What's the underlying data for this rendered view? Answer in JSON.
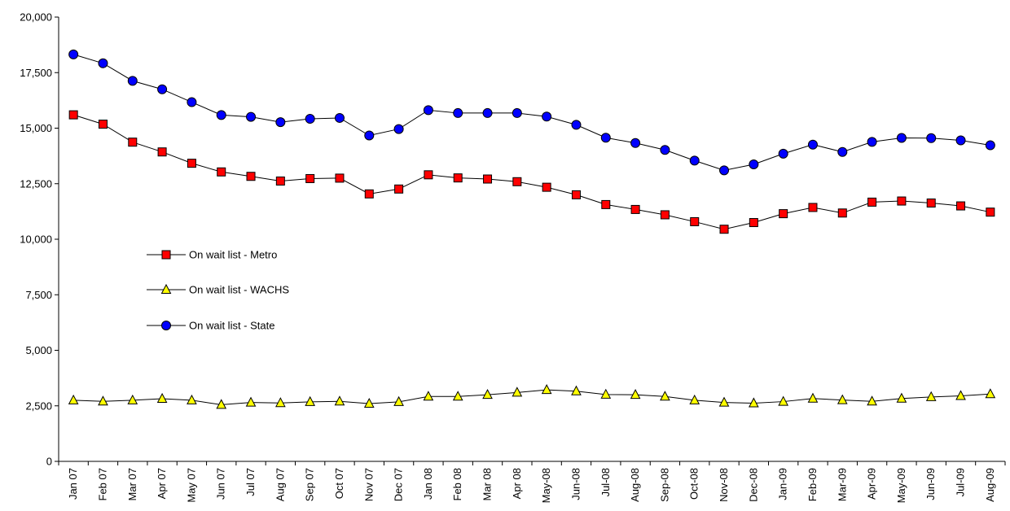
{
  "chart_data": {
    "type": "line",
    "categories": [
      "Jan 07",
      "Feb 07",
      "Mar 07",
      "Apr 07",
      "May 07",
      "Jun 07",
      "Jul 07",
      "Aug 07",
      "Sep 07",
      "Oct 07",
      "Nov 07",
      "Dec 07",
      "Jan 08",
      "Feb 08",
      "Mar 08",
      "Apr 08",
      "May-08",
      "Jun-08",
      "Jul-08",
      "Aug-08",
      "Sep-08",
      "Oct-08",
      "Nov-08",
      "Dec-08",
      "Jan-09",
      "Feb-09",
      "Mar-09",
      "Apr-09",
      "May-09",
      "Jun-09",
      "Jul-09",
      "Aug-09"
    ],
    "series": [
      {
        "name": "On wait list - Metro",
        "marker": "square",
        "color": "#ff0000",
        "values": [
          15600,
          15180,
          14370,
          13930,
          13420,
          13030,
          12830,
          12620,
          12730,
          12750,
          12040,
          12260,
          12900,
          12760,
          12710,
          12590,
          12340,
          12000,
          11560,
          11340,
          11100,
          10790,
          10450,
          10750,
          11150,
          11430,
          11180,
          11670,
          11720,
          11630,
          11500,
          11220
        ]
      },
      {
        "name": "On wait list - WACHS",
        "marker": "triangle",
        "color": "#ffff00",
        "values": [
          2750,
          2700,
          2750,
          2820,
          2750,
          2550,
          2650,
          2630,
          2680,
          2700,
          2600,
          2680,
          2920,
          2920,
          3000,
          3100,
          3220,
          3160,
          3010,
          3000,
          2920,
          2750,
          2650,
          2620,
          2690,
          2830,
          2760,
          2700,
          2830,
          2900,
          2950,
          3030
        ]
      },
      {
        "name": "On wait list - State",
        "marker": "circle",
        "color": "#0000ff",
        "values": [
          18320,
          17920,
          17130,
          16750,
          16170,
          15590,
          15510,
          15270,
          15420,
          15460,
          14670,
          14960,
          15810,
          15680,
          15680,
          15680,
          15520,
          15150,
          14570,
          14330,
          14020,
          13540,
          13100,
          13370,
          13850,
          14260,
          13930,
          14380,
          14560,
          14550,
          14450,
          14230
        ]
      }
    ],
    "yticks": [
      "0",
      "2,500",
      "5,000",
      "7,500",
      "10,000",
      "12,500",
      "15,000",
      "17,500",
      "20,000"
    ],
    "ylim": [
      0,
      20000
    ],
    "xlabel": "",
    "ylabel": "",
    "title": "",
    "grid": false,
    "legend_position": "center-left"
  }
}
